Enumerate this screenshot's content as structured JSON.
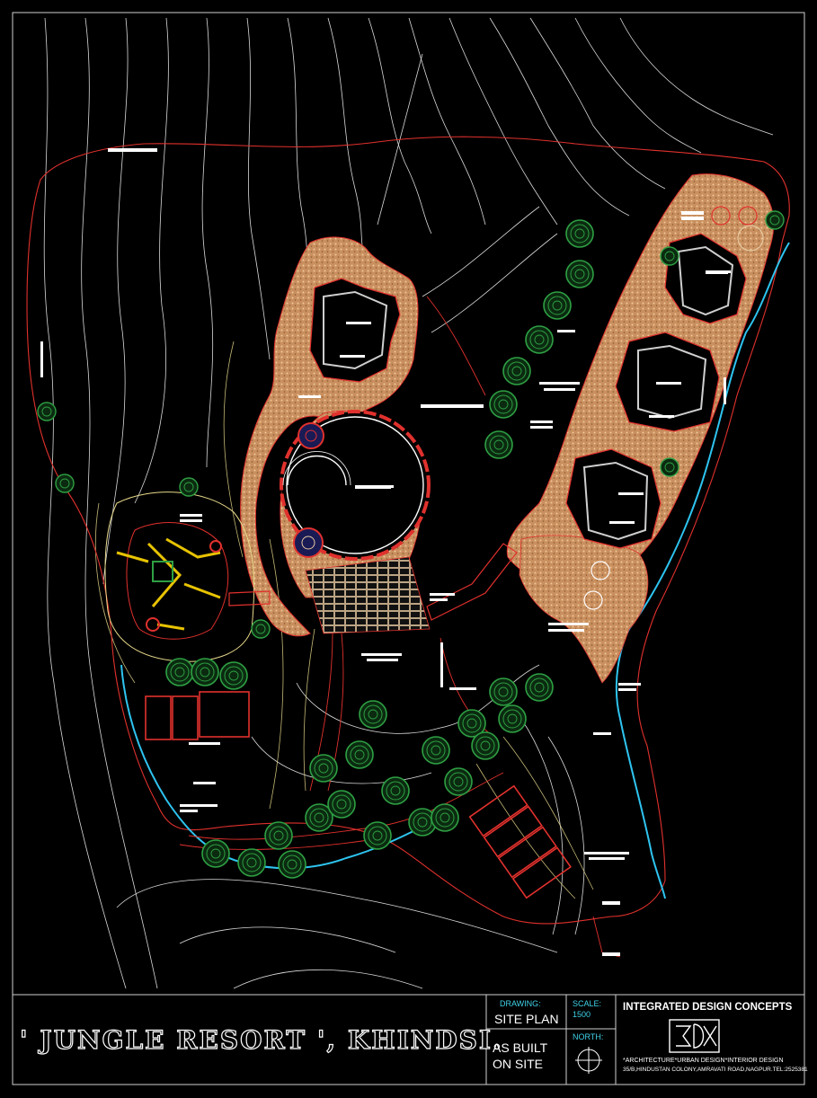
{
  "title_block": {
    "project_title": "' JUNGLE RESORT ', KHINDSI.",
    "drawing_label": "DRAWING:",
    "drawing_name": "SITE PLAN",
    "scale_label": "SCALE:",
    "scale_value": "1500",
    "status_line1": "AS BUILT",
    "status_line2": "ON SITE",
    "north_label": "NORTH:",
    "firm_name": "INTEGRATED DESIGN CONCEPTS",
    "firm_tagline": "*ARCHITECTURE*URBAN DESIGN*INTERIOR DESIGN",
    "firm_address": "35/B,HINDUSTAN COLONY,AMRAVATI ROAD,NAGPUR.TEL:2525381"
  },
  "colors": {
    "background": "#000000",
    "contour": "#f2f2f2",
    "contour_warm": "#e8d98a",
    "boundary": "#e0312d",
    "lake_edge": "#2ec4f0",
    "sand_fill": "#d9a070",
    "tree": "#2ea043",
    "cyan_text": "#3fd2e8"
  },
  "icons": [
    "compass-north-icon",
    "firm-logo-icon"
  ]
}
